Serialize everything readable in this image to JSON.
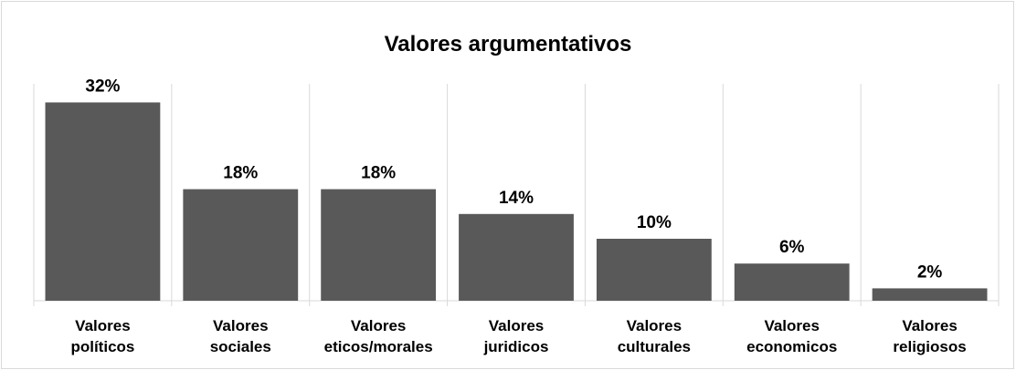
{
  "chart_data": {
    "type": "bar",
    "title": "Valores argumentativos",
    "categories": [
      "Valores políticos",
      "Valores sociales",
      "Valores eticos/morales",
      "Valores juridicos",
      "Valores culturales",
      "Valores economicos",
      "Valores religiosos"
    ],
    "values": [
      32,
      18,
      18,
      14,
      10,
      6,
      2
    ],
    "value_labels": [
      "32%",
      "18%",
      "18%",
      "14%",
      "10%",
      "6%",
      "2%"
    ],
    "color": "#595959",
    "ylim": [
      0,
      35
    ]
  }
}
